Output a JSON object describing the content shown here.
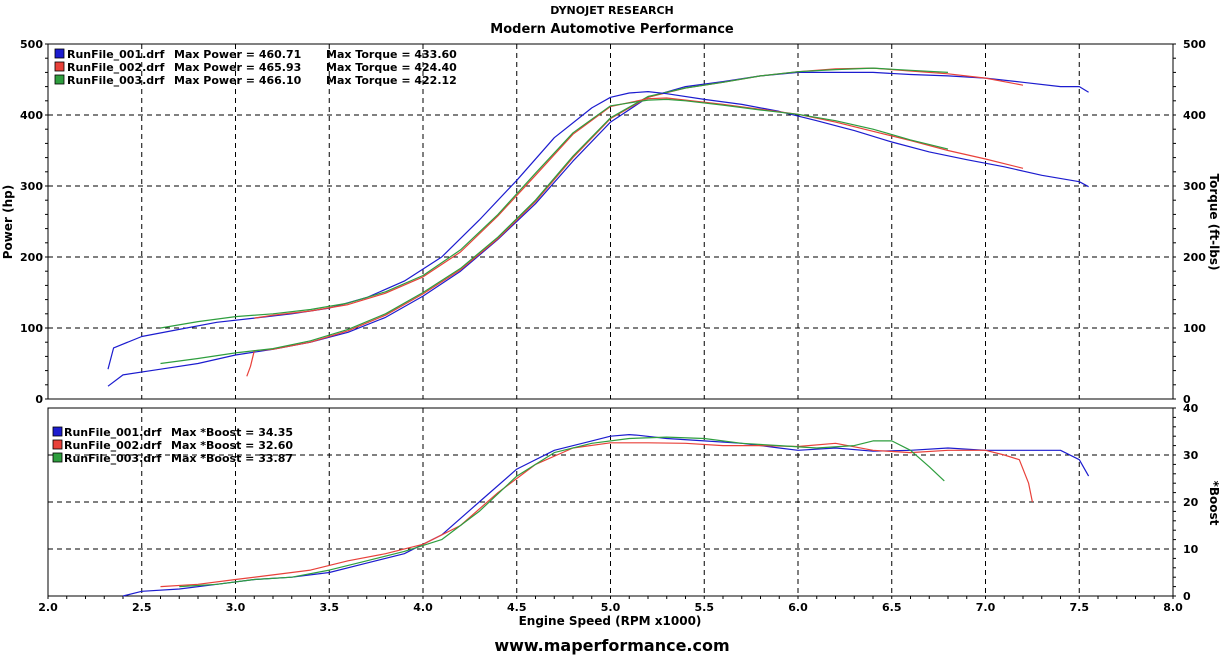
{
  "header": {
    "company": "DYNOJET RESEARCH",
    "title": "Modern Automotive Performance"
  },
  "footer": {
    "website": "www.maperformance.com"
  },
  "colors": {
    "run_001": "#1c1ccf",
    "run_002": "#e8413a",
    "run_003": "#2e9e3e",
    "grid": "#000000"
  },
  "chart_data": [
    {
      "type": "line",
      "title": "Modern Automotive Performance",
      "xlabel": "Engine Speed (RPM x1000)",
      "ylabel": "Power (hp)",
      "y2label": "Torque (ft-lbs)",
      "xlim": [
        2.0,
        8.0
      ],
      "ylim": [
        0,
        500
      ],
      "x_ticks": [
        "2.0",
        "2.5",
        "3.0",
        "3.5",
        "4.0",
        "4.5",
        "5.0",
        "5.5",
        "6.0",
        "6.5",
        "7.0",
        "7.5",
        "8.0"
      ],
      "y_ticks": [
        "0",
        "100",
        "200",
        "300",
        "400",
        "500"
      ],
      "y2_ticks": [
        "0",
        "100",
        "200",
        "300",
        "400",
        "500"
      ],
      "grid": true,
      "legend": [
        {
          "name": "RunFile_001.drf",
          "power_label": "Max Power = 460.71",
          "torque_label": "Max Torque = 433.60"
        },
        {
          "name": "RunFile_002.drf",
          "power_label": "Max Power = 465.93",
          "torque_label": "Max Torque = 424.40"
        },
        {
          "name": "RunFile_003.drf",
          "power_label": "Max Power = 466.10",
          "torque_label": "Max Torque = 422.12"
        }
      ],
      "series": [
        {
          "name": "RunFile_001.drf Power",
          "run": "run_001",
          "x": [
            2.32,
            2.4,
            2.6,
            2.8,
            3.0,
            3.2,
            3.4,
            3.6,
            3.8,
            4.0,
            4.2,
            4.4,
            4.6,
            4.8,
            5.0,
            5.2,
            5.4,
            5.6,
            5.8,
            6.0,
            6.2,
            6.4,
            6.6,
            6.8,
            7.0,
            7.2,
            7.4,
            7.5,
            7.55
          ],
          "y": [
            18,
            34,
            42,
            50,
            62,
            70,
            80,
            94,
            115,
            145,
            180,
            225,
            275,
            335,
            390,
            425,
            440,
            447,
            455,
            460,
            460,
            460,
            457,
            455,
            452,
            446,
            440,
            440,
            432
          ]
        },
        {
          "name": "RunFile_002.drf Power",
          "run": "run_002",
          "x": [
            3.06,
            3.08,
            3.1,
            3.2,
            3.4,
            3.6,
            3.8,
            4.0,
            4.2,
            4.4,
            4.6,
            4.8,
            5.0,
            5.2,
            5.4,
            5.6,
            5.8,
            6.0,
            6.2,
            6.4,
            6.6,
            6.8,
            7.0,
            7.2
          ],
          "y": [
            32,
            46,
            68,
            70,
            80,
            96,
            118,
            148,
            182,
            226,
            278,
            340,
            395,
            425,
            438,
            446,
            455,
            461,
            465,
            466,
            462,
            458,
            452,
            442
          ]
        },
        {
          "name": "RunFile_003.drf Power",
          "run": "run_003",
          "x": [
            2.6,
            2.8,
            3.0,
            3.2,
            3.4,
            3.6,
            3.8,
            4.0,
            4.2,
            4.4,
            4.6,
            4.8,
            5.0,
            5.2,
            5.4,
            5.6,
            5.8,
            6.0,
            6.2,
            6.4,
            6.6,
            6.8
          ],
          "y": [
            50,
            57,
            65,
            71,
            82,
            98,
            120,
            150,
            184,
            228,
            280,
            342,
            396,
            426,
            438,
            446,
            455,
            461,
            464,
            466,
            463,
            460
          ]
        },
        {
          "name": "RunFile_001.drf Torque",
          "run": "run_001",
          "x": [
            2.32,
            2.35,
            2.5,
            2.7,
            2.9,
            3.1,
            3.3,
            3.5,
            3.7,
            3.9,
            4.1,
            4.3,
            4.5,
            4.7,
            4.9,
            5.0,
            5.1,
            5.2,
            5.3,
            5.5,
            5.7,
            5.9,
            6.1,
            6.3,
            6.5,
            6.7,
            6.9,
            7.1,
            7.3,
            7.5,
            7.55
          ],
          "y": [
            42,
            72,
            88,
            98,
            108,
            114,
            120,
            128,
            143,
            166,
            200,
            252,
            308,
            368,
            410,
            425,
            431,
            433,
            430,
            422,
            415,
            405,
            392,
            378,
            362,
            348,
            337,
            327,
            315,
            306,
            299
          ]
        },
        {
          "name": "RunFile_002.drf Torque",
          "run": "run_002",
          "x": [
            3.1,
            3.2,
            3.4,
            3.6,
            3.8,
            4.0,
            4.2,
            4.4,
            4.6,
            4.8,
            5.0,
            5.2,
            5.3,
            5.4,
            5.6,
            5.8,
            6.0,
            6.2,
            6.4,
            6.6,
            6.8,
            7.0,
            7.2
          ],
          "y": [
            114,
            118,
            124,
            133,
            149,
            172,
            207,
            258,
            315,
            373,
            412,
            423,
            424,
            421,
            415,
            408,
            401,
            390,
            377,
            364,
            350,
            338,
            325
          ]
        },
        {
          "name": "RunFile_003.drf Torque",
          "run": "run_003",
          "x": [
            2.6,
            2.8,
            3.0,
            3.2,
            3.4,
            3.6,
            3.8,
            4.0,
            4.2,
            4.4,
            4.6,
            4.8,
            5.0,
            5.2,
            5.3,
            5.4,
            5.6,
            5.8,
            6.0,
            6.2,
            6.4,
            6.6,
            6.8
          ],
          "y": [
            100,
            109,
            116,
            120,
            126,
            135,
            151,
            174,
            210,
            260,
            318,
            375,
            413,
            421,
            422,
            420,
            414,
            407,
            401,
            392,
            380,
            365,
            352
          ]
        }
      ]
    },
    {
      "type": "line",
      "xlabel": "Engine Speed (RPM x1000)",
      "y2label": "*Boost",
      "xlim": [
        2.0,
        8.0
      ],
      "ylim": [
        0,
        40
      ],
      "y2_ticks": [
        "0",
        "10",
        "20",
        "30",
        "40"
      ],
      "grid": true,
      "legend": [
        {
          "name": "RunFile_001.drf",
          "boost_label": "Max *Boost = 34.35"
        },
        {
          "name": "RunFile_002.drf",
          "boost_label": "Max *Boost = 32.60"
        },
        {
          "name": "RunFile_003.drf",
          "boost_label": "Max *Boost = 33.87"
        }
      ],
      "series": [
        {
          "name": "RunFile_001.drf Boost",
          "run": "run_001",
          "x": [
            2.4,
            2.5,
            2.7,
            2.9,
            3.1,
            3.3,
            3.5,
            3.7,
            3.9,
            4.1,
            4.3,
            4.5,
            4.7,
            4.9,
            5.0,
            5.1,
            5.15,
            5.3,
            5.5,
            5.7,
            5.9,
            6.0,
            6.2,
            6.4,
            6.6,
            6.8,
            7.0,
            7.2,
            7.4,
            7.5,
            7.55
          ],
          "y": [
            0,
            1,
            1.5,
            2.5,
            3.5,
            4,
            5,
            7,
            9,
            13,
            20,
            27,
            31,
            33,
            34,
            34.35,
            34.2,
            33.5,
            33,
            32.5,
            31.5,
            31,
            31.5,
            30.8,
            31,
            31.5,
            31,
            31,
            31,
            29,
            25.5
          ]
        },
        {
          "name": "RunFile_002.drf Boost",
          "run": "run_002",
          "x": [
            2.6,
            2.8,
            3.0,
            3.2,
            3.4,
            3.6,
            3.8,
            4.0,
            4.2,
            4.4,
            4.6,
            4.8,
            5.0,
            5.2,
            5.4,
            5.6,
            5.8,
            6.0,
            6.2,
            6.4,
            6.6,
            6.8,
            7.0,
            7.1,
            7.18,
            7.23,
            7.25
          ],
          "y": [
            2,
            2.5,
            3.5,
            4.5,
            5.5,
            7.5,
            9,
            11,
            15,
            22,
            28,
            31.5,
            32.6,
            32.6,
            32.5,
            32,
            32,
            31.8,
            32.5,
            31,
            30.5,
            31,
            31,
            30,
            29,
            24,
            20
          ]
        },
        {
          "name": "RunFile_003.drf Boost",
          "run": "run_003",
          "x": [
            2.7,
            2.9,
            3.1,
            3.3,
            3.5,
            3.7,
            3.9,
            4.1,
            4.3,
            4.5,
            4.7,
            4.9,
            5.1,
            5.3,
            5.5,
            5.7,
            5.9,
            6.1,
            6.3,
            6.4,
            6.5,
            6.6,
            6.7,
            6.78
          ],
          "y": [
            2,
            2.5,
            3.5,
            4,
            5.5,
            7.5,
            9.5,
            12,
            18,
            25.5,
            30.5,
            32.5,
            33.5,
            33.8,
            33.5,
            32.5,
            32,
            31.5,
            32,
            33,
            33,
            31,
            27.5,
            24.5
          ]
        }
      ]
    }
  ]
}
